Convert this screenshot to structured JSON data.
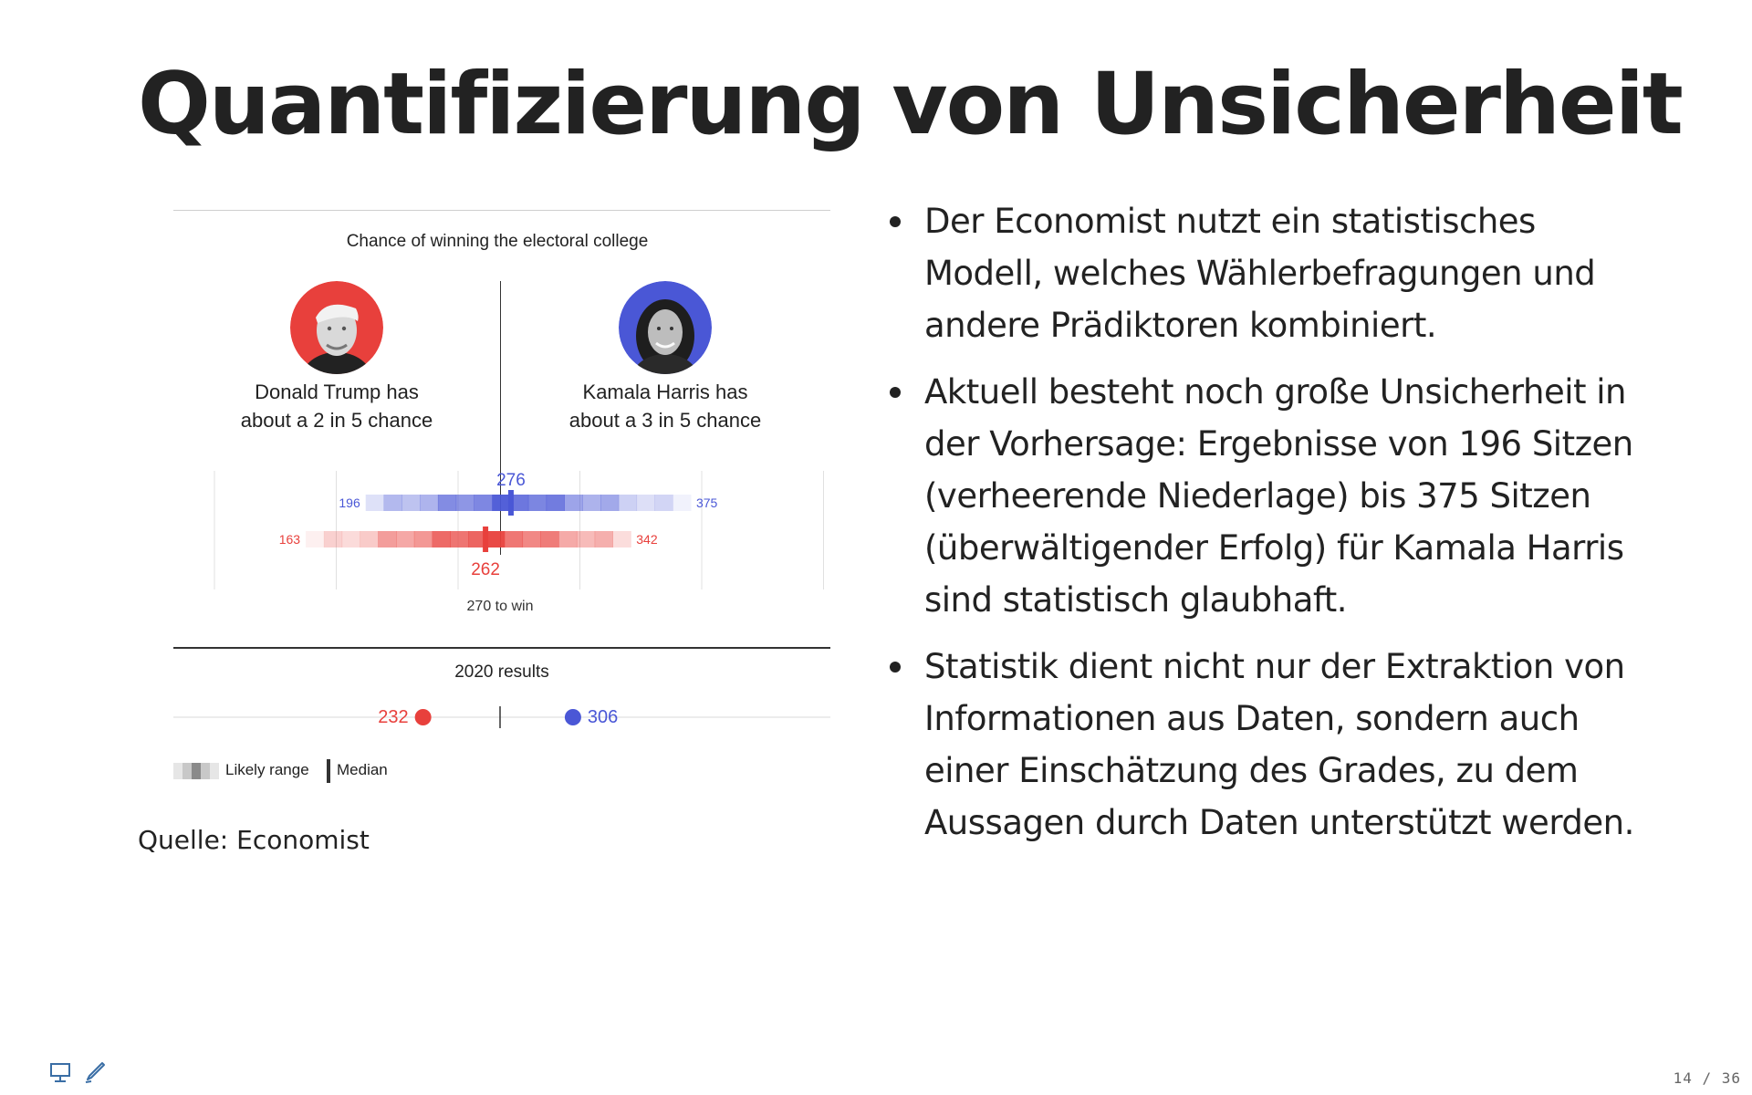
{
  "slide": {
    "title": "Quantifizierung von Unsicherheit",
    "source": "Quelle: Economist",
    "page": "14 / 36"
  },
  "figure": {
    "title": "Chance of winning the electoral college",
    "trump": {
      "line1": "Donald Trump has",
      "line2": "about a 2 in 5 chance",
      "color": "#e8403c"
    },
    "harris": {
      "line1": "Kamala Harris has",
      "line2": "about a 3 in 5 chance",
      "color": "#4a57d6"
    },
    "win_label": "270 to win",
    "results_title": "2020 results",
    "legend_range": "Likely range",
    "legend_median": "Median"
  },
  "chart_data": {
    "type": "range",
    "threshold": 270,
    "series": [
      {
        "name": "Kamala Harris",
        "low": 196,
        "median": 276,
        "high": 375,
        "color": "#4a57d6"
      },
      {
        "name": "Donald Trump",
        "low": 163,
        "median": 262,
        "high": 342,
        "color": "#e8403c"
      }
    ],
    "results_2020": [
      {
        "name": "Donald Trump",
        "value": 232,
        "color": "#e8403c"
      },
      {
        "name": "Kamala Harris",
        "value": 306,
        "color": "#4a57d6"
      }
    ]
  },
  "bullets": [
    "Der Economist nutzt ein statistisches Modell, welches Wählerbefragungen und andere Prädiktoren kombiniert.",
    "Aktuell besteht noch große Unsicherheit in der Vorhersage: Ergebnisse von 196 Sitzen (verheerende Niederlage) bis 375 Sitzen (überwältigender Erfolg) für Kamala Harris sind statistisch glaubhaft.",
    "Statistik dient nicht nur der Extraktion von Informationen aus Daten, sondern auch einer Einschätzung des Grades, zu dem Aussagen durch Daten unterstützt werden."
  ],
  "icons": {
    "presenter": "presenter-icon",
    "pen": "pen-icon"
  }
}
